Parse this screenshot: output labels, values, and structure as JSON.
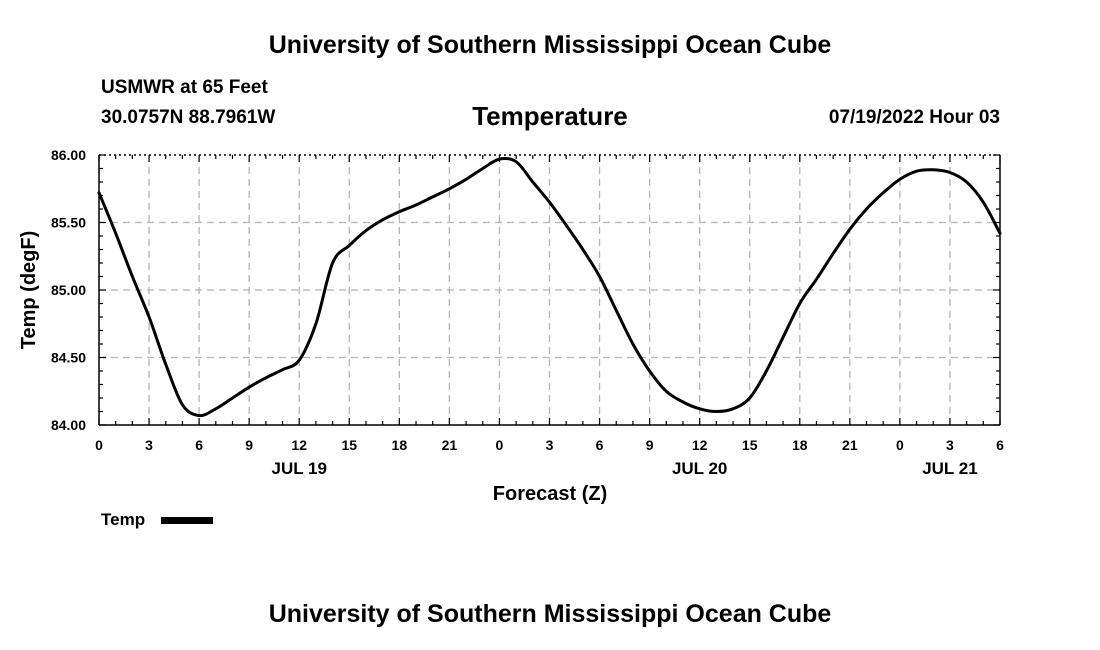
{
  "page": {
    "title_top": "University of Southern Mississippi Ocean Cube",
    "title_bottom": "University of Southern Mississippi Ocean Cube",
    "station_line1": "USMWR at 65 Feet",
    "station_line2": "30.0757N  88.7961W",
    "datetime": "07/19/2022 Hour 03"
  },
  "chart_data": {
    "type": "line",
    "title": "Temperature",
    "xlabel": "Forecast (Z)",
    "ylabel": "Temp (degF)",
    "x_unit": "forecast hour",
    "xlim": [
      0,
      54
    ],
    "ylim": [
      84.0,
      86.0
    ],
    "y_ticks": [
      84.0,
      84.5,
      85.0,
      85.5,
      86.0
    ],
    "y_tick_labels": [
      "84.00",
      "84.50",
      "85.00",
      "85.50",
      "86.00"
    ],
    "x_ticks": [
      0,
      3,
      6,
      9,
      12,
      15,
      18,
      21,
      24,
      27,
      30,
      33,
      36,
      39,
      42,
      45,
      48,
      51,
      54
    ],
    "x_tick_labels": [
      "0",
      "3",
      "6",
      "9",
      "12",
      "15",
      "18",
      "21",
      "0",
      "3",
      "6",
      "9",
      "12",
      "15",
      "18",
      "21",
      "0",
      "3",
      "6"
    ],
    "date_labels": [
      {
        "x": 12,
        "label": "JUL 19"
      },
      {
        "x": 36,
        "label": "JUL 20"
      },
      {
        "x": 51,
        "label": "JUL 21"
      }
    ],
    "grid": true,
    "legend_position": "bottom-left",
    "series": [
      {
        "name": "Temp",
        "color": "#000000",
        "x": [
          0,
          1,
          2,
          3,
          4,
          5,
          6,
          7,
          8,
          9,
          10,
          11,
          12,
          13,
          14,
          15,
          16,
          17,
          18,
          19,
          20,
          21,
          22,
          23,
          24,
          25,
          26,
          27,
          28,
          29,
          30,
          31,
          32,
          33,
          34,
          35,
          36,
          37,
          38,
          39,
          40,
          41,
          42,
          43,
          44,
          45,
          46,
          47,
          48,
          49,
          50,
          51,
          52,
          53,
          54
        ],
        "y": [
          85.72,
          85.42,
          85.1,
          84.8,
          84.45,
          84.15,
          84.07,
          84.12,
          84.2,
          84.28,
          84.35,
          84.41,
          84.48,
          84.75,
          85.2,
          85.33,
          85.44,
          85.52,
          85.58,
          85.63,
          85.69,
          85.75,
          85.82,
          85.9,
          85.97,
          85.95,
          85.8,
          85.65,
          85.48,
          85.3,
          85.1,
          84.85,
          84.6,
          84.4,
          84.25,
          84.17,
          84.12,
          84.1,
          84.12,
          84.2,
          84.4,
          84.65,
          84.9,
          85.08,
          85.27,
          85.45,
          85.6,
          85.72,
          85.82,
          85.88,
          85.89,
          85.87,
          85.8,
          85.65,
          85.42
        ]
      }
    ]
  }
}
